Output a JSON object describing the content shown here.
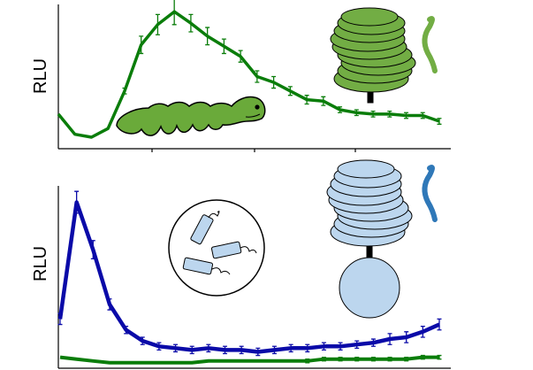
{
  "colors": {
    "green": "#0a7d0a",
    "blue": "#0a0aa8",
    "caterpillar_fill": "#6aaa3a",
    "structure_green": "#72ad44",
    "structure_blue": "#bcd6ee",
    "tail_blue": "#2f78b8"
  },
  "icons": {
    "top_panel": [
      "caterpillar-icon",
      "green-receptor-structure-icon"
    ],
    "bottom_panel": [
      "bacteria-circle-icon",
      "blue-receptor-structure-icon"
    ]
  },
  "chart_data": [
    {
      "type": "line",
      "ylabel": "RLU",
      "xlabel": "",
      "title": "",
      "grid": false,
      "xlim": [
        0,
        24
      ],
      "ylim": [
        0,
        100
      ],
      "x": [
        0,
        1,
        2,
        3,
        4,
        5,
        6,
        7,
        8,
        9,
        10,
        11,
        12,
        13,
        14,
        15,
        16,
        17,
        18,
        19,
        20,
        21,
        22,
        23
      ],
      "series": [
        {
          "color": "green",
          "values": [
            24,
            10,
            8,
            14,
            40,
            72,
            86,
            95,
            87,
            78,
            71,
            64,
            50,
            46,
            40,
            34,
            33,
            27,
            25,
            24,
            24,
            23,
            23,
            19
          ],
          "errors": [
            0,
            0,
            0,
            0,
            2,
            6,
            7,
            9,
            6,
            6,
            5,
            4,
            4,
            4,
            3,
            3,
            3,
            2,
            2,
            2,
            2,
            2,
            2,
            2
          ]
        }
      ]
    },
    {
      "type": "line",
      "ylabel": "RLU",
      "xlabel": "",
      "title": "",
      "grid": false,
      "xlim": [
        0,
        24
      ],
      "ylim": [
        0,
        100
      ],
      "x": [
        0,
        1,
        2,
        3,
        4,
        5,
        6,
        7,
        8,
        9,
        10,
        11,
        12,
        13,
        14,
        15,
        16,
        17,
        18,
        19,
        20,
        21,
        22,
        23
      ],
      "series": [
        {
          "color": "blue",
          "values": [
            27,
            91,
            65,
            35,
            21,
            15,
            12,
            11,
            10,
            11,
            10,
            10,
            9,
            10,
            11,
            11,
            12,
            12,
            13,
            14,
            16,
            17,
            20,
            24
          ],
          "errors": [
            3,
            6,
            5,
            3,
            2,
            2,
            2,
            2,
            2,
            2,
            2,
            2,
            2,
            2,
            2,
            2,
            2,
            2,
            2,
            2,
            3,
            3,
            3,
            3
          ]
        },
        {
          "color": "green",
          "values": [
            6,
            5,
            4,
            3,
            3,
            3,
            3,
            3,
            3,
            4,
            4,
            4,
            4,
            4,
            4,
            4,
            5,
            5,
            5,
            5,
            5,
            5,
            6,
            6
          ],
          "errors": [
            0,
            0,
            0,
            0,
            0,
            0,
            0,
            0,
            0,
            0,
            0,
            0,
            0,
            0,
            0,
            1,
            1,
            1,
            1,
            1,
            1,
            1,
            1,
            1
          ]
        }
      ]
    }
  ]
}
